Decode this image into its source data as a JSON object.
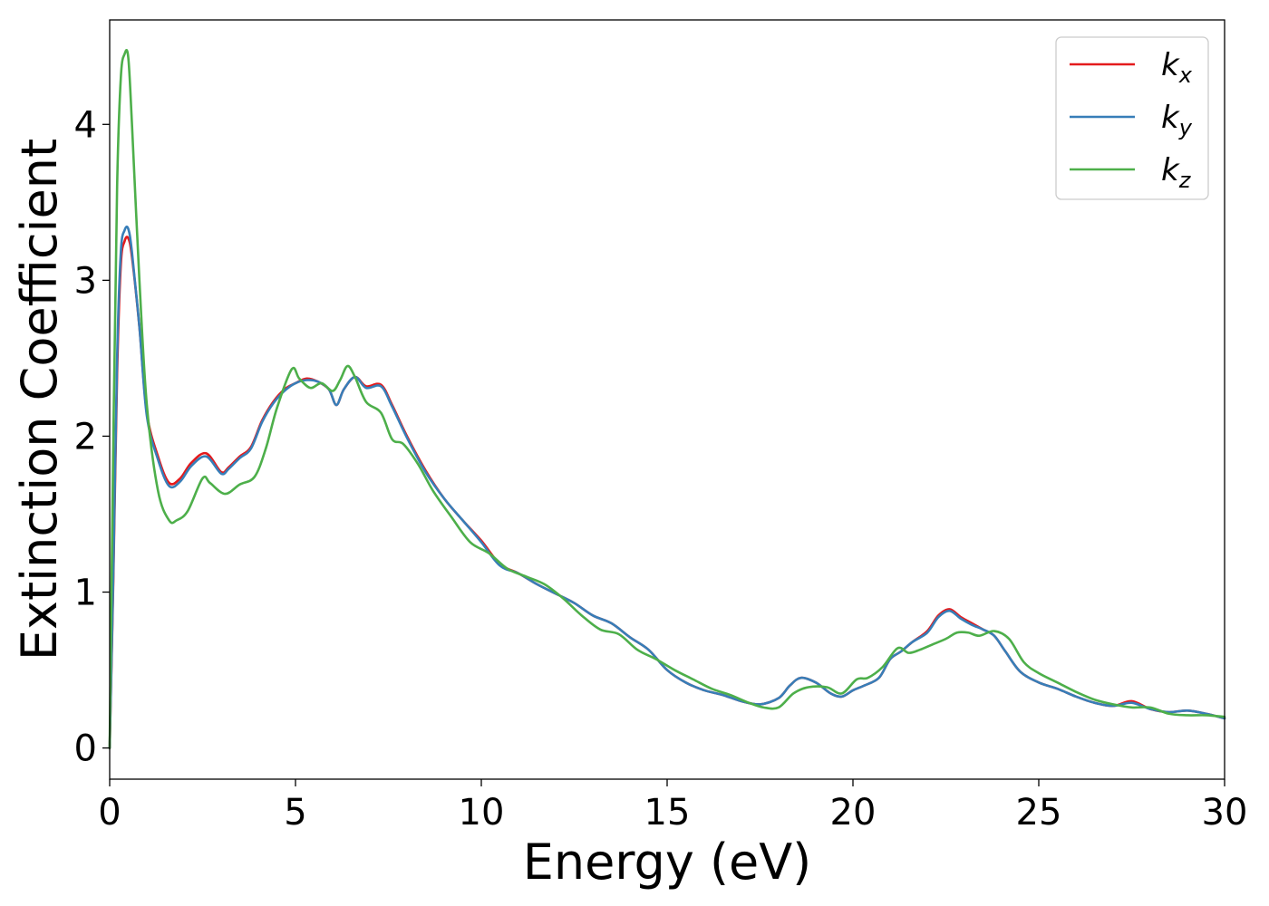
{
  "chart_data": {
    "type": "line",
    "xlabel": "Energy (eV)",
    "ylabel": "Extinction Coefficient",
    "xlim": [
      0,
      30
    ],
    "ylim": [
      -0.2,
      4.67
    ],
    "xticks": [
      0,
      5,
      10,
      15,
      20,
      25,
      30
    ],
    "yticks": [
      0,
      1,
      2,
      3,
      4
    ],
    "grid": false,
    "legend_position": "top-right",
    "series": [
      {
        "name": "k_x",
        "base": "k",
        "sub": "x",
        "color": "#e41a1c",
        "x": [
          0,
          0.1,
          0.2,
          0.3,
          0.4,
          0.5,
          0.6,
          0.8,
          1.0,
          1.3,
          1.6,
          1.9,
          2.2,
          2.6,
          3.0,
          3.2,
          3.5,
          3.8,
          4.1,
          4.4,
          4.7,
          5.0,
          5.3,
          5.6,
          5.9,
          6.1,
          6.3,
          6.6,
          6.9,
          7.3,
          7.6,
          8.0,
          8.5,
          9.0,
          9.5,
          10.0,
          10.5,
          11.0,
          11.5,
          12.0,
          12.5,
          13.0,
          13.5,
          14.0,
          14.5,
          15.0,
          15.5,
          16.0,
          16.5,
          17.0,
          17.5,
          18.0,
          18.3,
          18.6,
          19.0,
          19.4,
          19.7,
          20.0,
          20.3,
          20.7,
          21.0,
          21.3,
          21.6,
          22.0,
          22.3,
          22.6,
          22.9,
          23.2,
          23.5,
          23.8,
          24.1,
          24.5,
          25.0,
          25.5,
          26.0,
          26.5,
          27.0,
          27.5,
          28.0,
          28.5,
          29.0,
          29.5,
          30.0
        ],
        "values": [
          0.0,
          1.1,
          2.4,
          3.1,
          3.25,
          3.27,
          3.15,
          2.7,
          2.15,
          1.87,
          1.7,
          1.73,
          1.83,
          1.89,
          1.77,
          1.8,
          1.87,
          1.93,
          2.1,
          2.22,
          2.3,
          2.34,
          2.37,
          2.35,
          2.3,
          2.2,
          2.3,
          2.38,
          2.32,
          2.33,
          2.2,
          2.0,
          1.78,
          1.6,
          1.46,
          1.33,
          1.18,
          1.12,
          1.05,
          0.99,
          0.93,
          0.85,
          0.8,
          0.71,
          0.63,
          0.5,
          0.42,
          0.37,
          0.34,
          0.3,
          0.28,
          0.32,
          0.4,
          0.45,
          0.42,
          0.35,
          0.33,
          0.37,
          0.4,
          0.45,
          0.57,
          0.62,
          0.68,
          0.75,
          0.85,
          0.89,
          0.84,
          0.8,
          0.76,
          0.72,
          0.62,
          0.49,
          0.42,
          0.38,
          0.33,
          0.29,
          0.27,
          0.3,
          0.25,
          0.23,
          0.24,
          0.22,
          0.19
        ]
      },
      {
        "name": "k_y",
        "base": "k",
        "sub": "y",
        "color": "#377eb8",
        "x": [
          0,
          0.1,
          0.2,
          0.3,
          0.4,
          0.5,
          0.6,
          0.8,
          1.0,
          1.3,
          1.6,
          1.9,
          2.2,
          2.6,
          3.0,
          3.2,
          3.5,
          3.8,
          4.1,
          4.4,
          4.7,
          5.0,
          5.3,
          5.6,
          5.9,
          6.1,
          6.3,
          6.6,
          6.9,
          7.3,
          7.6,
          8.0,
          8.5,
          9.0,
          9.5,
          10.0,
          10.5,
          11.0,
          11.5,
          12.0,
          12.5,
          13.0,
          13.5,
          14.0,
          14.5,
          15.0,
          15.5,
          16.0,
          16.5,
          17.0,
          17.5,
          18.0,
          18.3,
          18.6,
          19.0,
          19.4,
          19.7,
          20.0,
          20.3,
          20.7,
          21.0,
          21.3,
          21.6,
          22.0,
          22.3,
          22.6,
          22.9,
          23.2,
          23.5,
          23.8,
          24.1,
          24.5,
          25.0,
          25.5,
          26.0,
          26.5,
          27.0,
          27.5,
          28.0,
          28.5,
          29.0,
          29.5,
          30.0
        ],
        "values": [
          0.0,
          1.15,
          2.5,
          3.18,
          3.32,
          3.33,
          3.18,
          2.7,
          2.13,
          1.85,
          1.68,
          1.71,
          1.81,
          1.87,
          1.76,
          1.79,
          1.86,
          1.92,
          2.09,
          2.21,
          2.29,
          2.34,
          2.36,
          2.35,
          2.3,
          2.2,
          2.3,
          2.38,
          2.31,
          2.32,
          2.19,
          1.99,
          1.77,
          1.6,
          1.46,
          1.32,
          1.17,
          1.12,
          1.05,
          0.99,
          0.93,
          0.85,
          0.8,
          0.71,
          0.63,
          0.5,
          0.42,
          0.37,
          0.34,
          0.3,
          0.28,
          0.32,
          0.4,
          0.45,
          0.42,
          0.35,
          0.33,
          0.37,
          0.4,
          0.45,
          0.57,
          0.62,
          0.68,
          0.74,
          0.84,
          0.88,
          0.83,
          0.79,
          0.76,
          0.72,
          0.62,
          0.49,
          0.42,
          0.38,
          0.33,
          0.29,
          0.27,
          0.29,
          0.25,
          0.23,
          0.24,
          0.22,
          0.19
        ]
      },
      {
        "name": "k_z",
        "base": "k",
        "sub": "z",
        "color": "#4daf4a",
        "x": [
          0,
          0.1,
          0.2,
          0.3,
          0.4,
          0.5,
          0.6,
          0.8,
          1.0,
          1.3,
          1.6,
          1.8,
          2.1,
          2.5,
          2.7,
          3.1,
          3.5,
          3.9,
          4.2,
          4.5,
          4.9,
          5.1,
          5.4,
          5.7,
          6.0,
          6.2,
          6.4,
          6.6,
          6.9,
          7.3,
          7.6,
          7.9,
          8.3,
          8.7,
          9.2,
          9.7,
          10.2,
          10.7,
          11.2,
          11.7,
          12.2,
          12.7,
          13.2,
          13.7,
          14.2,
          14.7,
          15.2,
          15.7,
          16.2,
          16.7,
          17.2,
          17.6,
          18.0,
          18.4,
          18.8,
          19.3,
          19.7,
          20.1,
          20.4,
          20.8,
          21.2,
          21.5,
          21.8,
          22.1,
          22.5,
          22.8,
          23.1,
          23.4,
          23.8,
          24.2,
          24.6,
          25.0,
          25.5,
          26.0,
          26.5,
          27.0,
          27.5,
          28.0,
          28.5,
          29.0,
          29.5,
          30.0
        ],
        "values": [
          0.0,
          2.0,
          3.6,
          4.3,
          4.45,
          4.43,
          4.0,
          3.0,
          2.2,
          1.65,
          1.46,
          1.46,
          1.52,
          1.73,
          1.7,
          1.63,
          1.69,
          1.74,
          1.92,
          2.18,
          2.43,
          2.37,
          2.31,
          2.34,
          2.29,
          2.36,
          2.45,
          2.38,
          2.22,
          2.15,
          1.98,
          1.95,
          1.82,
          1.65,
          1.48,
          1.32,
          1.25,
          1.15,
          1.1,
          1.05,
          0.96,
          0.85,
          0.76,
          0.73,
          0.63,
          0.57,
          0.5,
          0.44,
          0.38,
          0.34,
          0.29,
          0.26,
          0.26,
          0.35,
          0.39,
          0.39,
          0.35,
          0.44,
          0.45,
          0.52,
          0.64,
          0.61,
          0.63,
          0.66,
          0.7,
          0.74,
          0.74,
          0.72,
          0.75,
          0.7,
          0.55,
          0.48,
          0.42,
          0.36,
          0.31,
          0.28,
          0.26,
          0.26,
          0.22,
          0.21,
          0.21,
          0.2
        ]
      }
    ]
  }
}
